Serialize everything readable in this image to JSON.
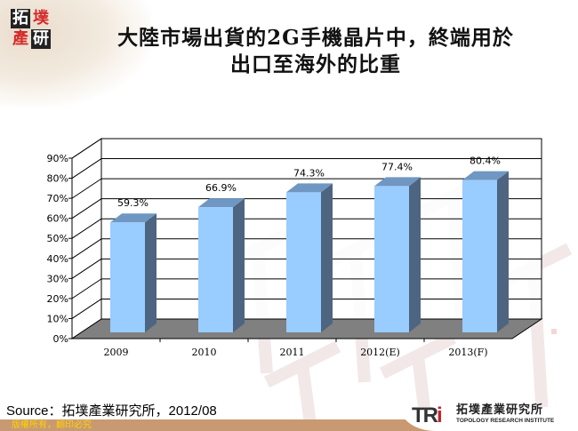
{
  "header": {
    "logo_chars": [
      "拓",
      "墣",
      "產",
      "研"
    ],
    "title_line1": "大陸市場出貨的2G手機晶片中，終端用於",
    "title_line2": "出口至海外的比重"
  },
  "chart_data": {
    "type": "bar",
    "style": "3d-column",
    "title": "大陸市場出貨的2G手機晶片中，終端用於出口至海外的比重",
    "categories": [
      "2009",
      "2010",
      "2011",
      "2012(E)",
      "2013(F)"
    ],
    "values": [
      59.3,
      66.9,
      74.3,
      77.4,
      80.4
    ],
    "value_labels": [
      "59.3%",
      "66.9%",
      "74.3%",
      "77.4%",
      "80.4%"
    ],
    "xlabel": "",
    "ylabel": "",
    "yticks": [
      "0%",
      "10%",
      "20%",
      "30%",
      "40%",
      "50%",
      "60%",
      "70%",
      "80%",
      "90%"
    ],
    "ylim": [
      0,
      90
    ],
    "grid": true,
    "legend": null,
    "colors": {
      "bar_front": "#99ccff",
      "bar_top": "#6f97c2",
      "bar_side": "#4d6580",
      "floor": "#808080",
      "grid": "#000000"
    }
  },
  "footer": {
    "source": "Source：拓墣產業研究所，2012/08",
    "copyright": "版權所有，翻印必究",
    "org_mark": "TRi",
    "org_name_cn": "拓墣產業研究所",
    "org_name_en": "TOPOLOGY RESEARCH INSTITUTE"
  }
}
